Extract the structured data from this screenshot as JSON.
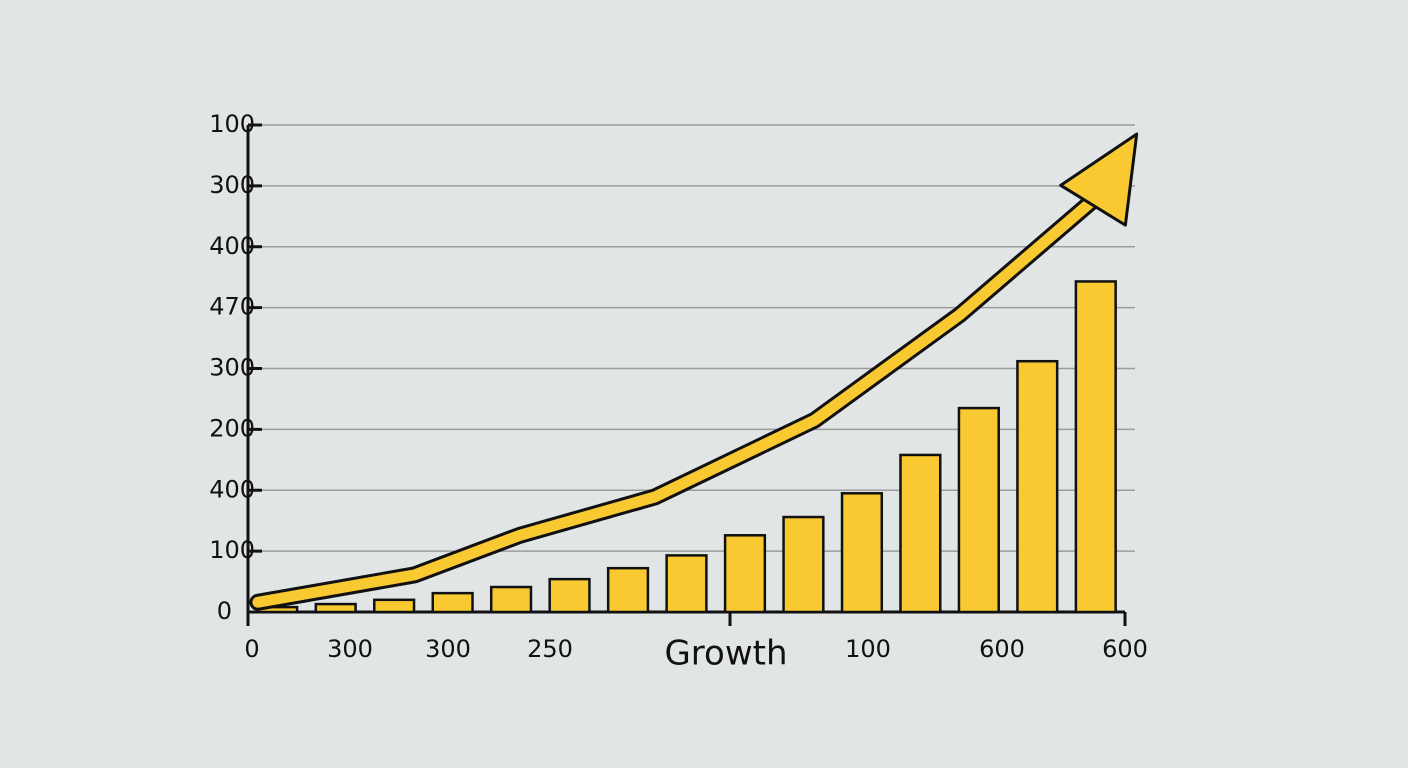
{
  "chart_data": {
    "type": "bar",
    "xlabel": "Growth",
    "y_axis_labels": [
      "0",
      "100",
      "400",
      "200",
      "300",
      "470",
      "400",
      "300",
      "100"
    ],
    "x_axis_labels": [
      "0",
      "300",
      "300",
      "250",
      "100",
      "600",
      "600"
    ],
    "categories": [
      null,
      null,
      null,
      null,
      null,
      null,
      null,
      null,
      null,
      null,
      null,
      null,
      null,
      null,
      null
    ],
    "values": [
      0.08,
      0.13,
      0.2,
      0.31,
      0.41,
      0.54,
      0.72,
      0.93,
      1.26,
      1.56,
      1.95,
      2.58,
      3.35,
      4.12,
      5.43
    ],
    "color": "#f9c932",
    "ylim": [
      0,
      8
    ],
    "xlim": [
      0,
      15
    ],
    "grid": true,
    "trend": {
      "color": "#f9c932",
      "x": [
        0.17,
        2.85,
        4.65,
        6.96,
        9.69,
        12.17,
        14.56,
        15.2
      ],
      "values": [
        0.16,
        0.61,
        1.26,
        1.89,
        3.15,
        4.88,
        6.85,
        7.85
      ]
    }
  }
}
